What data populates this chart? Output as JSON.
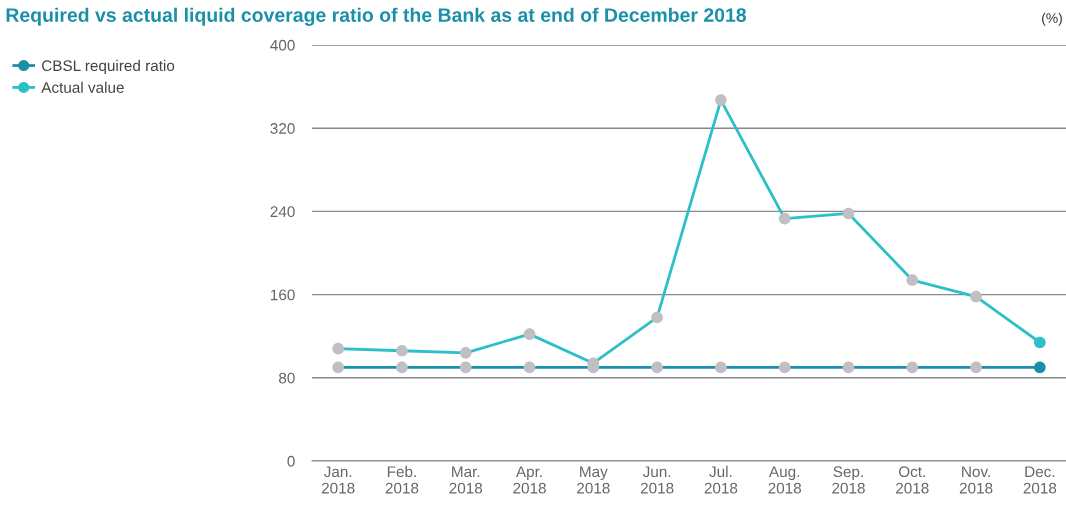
{
  "chart_data": {
    "type": "line",
    "title": "Required vs actual liquid coverage ratio of the Bank as at end of December 2018",
    "annotations": [
      "(%)"
    ],
    "categories": [
      "Jan.\n2018",
      "Feb.\n2018",
      "Mar.\n2018",
      "Apr.\n2018",
      "May\n2018",
      "Jun.\n2018",
      "Jul.\n2018",
      "Aug.\n2018",
      "Sep.\n2018",
      "Oct.\n2018",
      "Nov.\n2018",
      "Dec.\n2018"
    ],
    "series": [
      {
        "name": "CBSL required ratio",
        "color": "#1a8fa8",
        "colors": [
          "#c0c0c4",
          "#c0c0c4",
          "#c0c0c4",
          "#c0c0c4",
          "#c0c0c4",
          "#c0c0c4",
          "#c0c0c4",
          "#c0c0c4",
          "#c0c0c4",
          "#c0c0c4",
          "#c0c0c4",
          "#1a8fa8"
        ],
        "values": [
          90,
          90,
          90,
          90,
          90,
          90,
          90,
          90,
          90,
          90,
          90,
          90
        ]
      },
      {
        "name": "Actual value",
        "color": "#2bbfc8",
        "colors": [
          "#c0c0c4",
          "#c0c0c4",
          "#c0c0c4",
          "#c0c0c4",
          "#c0c0c4",
          "#c0c0c4",
          "#c0c0c4",
          "#c0c0c4",
          "#c0c0c4",
          "#c0c0c4",
          "#c0c0c4",
          "#2bbfc8"
        ],
        "values": [
          108,
          106,
          104,
          122,
          94,
          138,
          347,
          233,
          238,
          174,
          158,
          114
        ]
      }
    ],
    "ylim": [
      0,
      400
    ],
    "yticks": [
      0,
      80,
      160,
      240,
      320,
      400
    ],
    "grid": "y",
    "legend": "top left",
    "marker": "circle",
    "line_style": "solid"
  }
}
